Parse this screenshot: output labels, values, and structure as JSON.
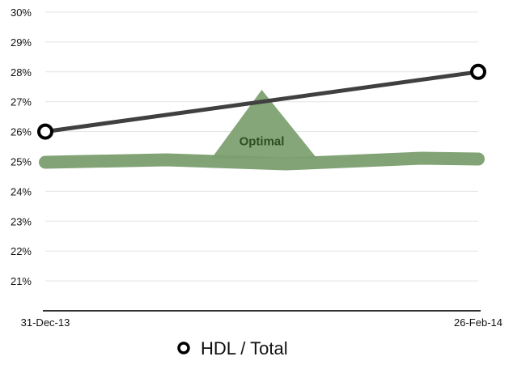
{
  "chart_data": {
    "type": "line",
    "x": [
      "31-Dec-13",
      "26-Feb-14"
    ],
    "series": [
      {
        "name": "HDL / Total",
        "values": [
          26,
          28
        ],
        "color": "#404040",
        "marker": "open-circle"
      }
    ],
    "y_unit": "%",
    "ylim": [
      20,
      30
    ],
    "yticks": [
      21,
      22,
      23,
      24,
      25,
      26,
      27,
      28,
      29,
      30
    ],
    "ytick_labels": [
      "21%",
      "22%",
      "23%",
      "24%",
      "25%",
      "26%",
      "27%",
      "28%",
      "29%",
      "30%"
    ],
    "xtick_labels": [
      "31-Dec-13",
      "26-Feb-14"
    ],
    "grid": true,
    "reference_band": {
      "label": "Optimal",
      "value": 25,
      "peak": 27.4,
      "color": "#7a9e6e"
    },
    "legend": {
      "position": "bottom",
      "entries": [
        "HDL / Total"
      ]
    }
  }
}
